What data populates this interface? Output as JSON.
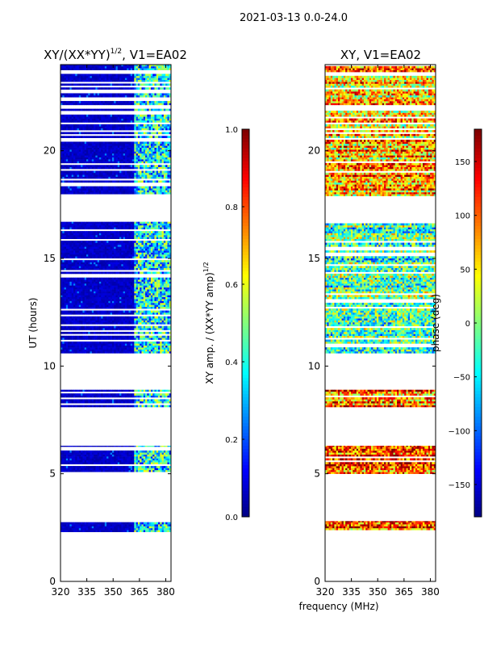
{
  "suptitle": "2021-03-13 0.0-24.0",
  "xlabel": "frequency (MHz)",
  "colors": {
    "bg": "#ffffff",
    "axis": "#000000",
    "empty": "#ffffff"
  },
  "chart_data": [
    {
      "type": "heatmap",
      "title_main": "XY/(XX*YY)",
      "title_sup": "1/2",
      "title_rest": ", V1=EA02",
      "xlabel": "",
      "ylabel": "UT (hours)",
      "xlim": [
        320,
        383
      ],
      "ylim": [
        0,
        24
      ],
      "xticks": [
        320,
        335,
        350,
        365,
        380
      ],
      "yticks": [
        0,
        5,
        10,
        15,
        20
      ],
      "colorbar": {
        "min": 0.0,
        "max": 1.0,
        "ticks": [
          "0.0",
          "0.2",
          "0.4",
          "0.6",
          "0.8",
          "1.0"
        ],
        "tick_values": [
          0.0,
          0.2,
          0.4,
          0.6,
          0.8,
          1.0
        ],
        "label_main": "XY amp. / (XX*YY amp)",
        "label_sup": "1/2",
        "colormap": "jet"
      },
      "data_bands_hours": [
        [
          2.3,
          2.8
        ],
        [
          5.0,
          6.3
        ],
        [
          8.1,
          8.9
        ],
        [
          10.6,
          16.7
        ],
        [
          17.9,
          24.0
        ]
      ],
      "note": "low values (dark blue) for 320-362 MHz; patchy 0.2-0.6 values for 362-383 MHz"
    },
    {
      "type": "heatmap",
      "title_main": "XY, V1=EA02",
      "xlabel": "",
      "ylabel": "",
      "xlim": [
        320,
        383
      ],
      "ylim": [
        0,
        24
      ],
      "xticks": [
        320,
        335,
        350,
        365,
        380
      ],
      "yticks": [
        0,
        5,
        10,
        15,
        20
      ],
      "colorbar": {
        "min": -180,
        "max": 180,
        "ticks": [
          "150",
          "100",
          "50",
          "0",
          "−50",
          "−100",
          "−150"
        ],
        "tick_values": [
          150,
          100,
          50,
          0,
          -50,
          -100,
          -150
        ],
        "label_main": "phase (deg)",
        "colormap": "jet"
      },
      "data_bands_hours": [
        [
          2.3,
          2.8
        ],
        [
          5.0,
          6.3
        ],
        [
          8.1,
          8.9
        ],
        [
          10.6,
          16.7
        ],
        [
          17.9,
          24.0
        ]
      ],
      "note": "phase varies across range; mostly -50 to 50 deg at 10-17 h, 50 to 180 deg at 18-22 h and 5-9 h"
    }
  ]
}
